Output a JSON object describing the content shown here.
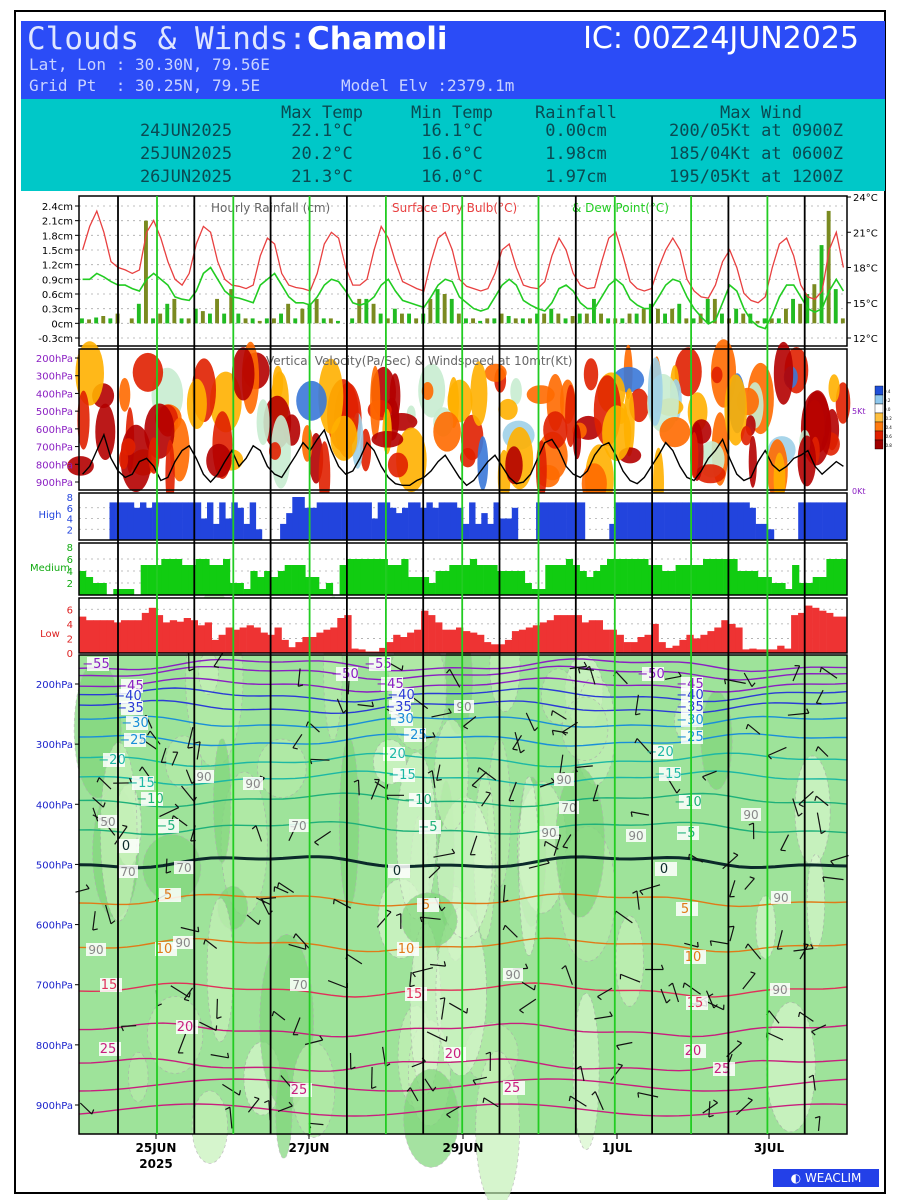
{
  "header": {
    "title_prefix": "Clouds & Winds:",
    "location": "Chamoli",
    "ic": "IC: 00Z24JUN2025",
    "latlon": "Lat, Lon : 30.30N, 79.56E",
    "gridpt": "Grid Pt  : 30.25N, 79.5E",
    "model_elev": "Model Elv :2379.1m"
  },
  "summary": {
    "columns": [
      "Max Temp",
      "Min Temp",
      "Rainfall",
      "Max Wind"
    ],
    "rows": [
      {
        "date": "24JUN2025",
        "max": "22.1°C",
        "min": "16.1°C",
        "rain": "0.00cm",
        "wind": "200/05Kt at 0900Z"
      },
      {
        "date": "25JUN2025",
        "max": "20.2°C",
        "min": "16.6°C",
        "rain": "1.98cm",
        "wind": "185/04Kt at 0600Z"
      },
      {
        "date": "26JUN2025",
        "max": "21.3°C",
        "min": "16.0°C",
        "rain": "1.97cm",
        "wind": "195/05Kt at 1200Z"
      }
    ]
  },
  "chart_data": [
    {
      "type": "bar+line",
      "title": "Hourly Rainfall (cm)    Surface Dry Bulb(°C)  & Dew Point(°C)",
      "title_parts": [
        "Hourly Rainfall (cm)",
        "Surface Dry Bulb(°C)",
        "& Dew Point(°C)"
      ],
      "y_left_ticks": [
        "2.4cm",
        "2.1cm",
        "1.8cm",
        "1.5cm",
        "1.2cm",
        "0.9cm",
        "0.6cm",
        "0.3cm",
        "0cm",
        "-0.3cm"
      ],
      "y_left_range": [
        -0.3,
        2.4
      ],
      "y_right_ticks": [
        "24°C",
        "21°C",
        "18°C",
        "15°C",
        "12°C"
      ],
      "y_right_range": [
        12,
        24
      ],
      "rain": [
        0.1,
        0.08,
        0.12,
        0.15,
        0.1,
        0.2,
        0.0,
        0.1,
        0.4,
        2.1,
        0.1,
        0.2,
        0.4,
        0.5,
        0.1,
        0.1,
        0.3,
        0.25,
        0.2,
        0.5,
        0.2,
        0.7,
        0.2,
        0.1,
        0.1,
        0.05,
        0.1,
        0.1,
        0.2,
        0.4,
        0.1,
        0.3,
        0.4,
        0.5,
        0.1,
        0.1,
        0.05,
        0.0,
        0.1,
        0.5,
        0.5,
        0.4,
        0.2,
        0.1,
        0.3,
        0.2,
        0.2,
        0.1,
        0.2,
        0.5,
        0.7,
        0.6,
        0.5,
        0.2,
        0.1,
        0.1,
        0.05,
        0.1,
        0.1,
        0.2,
        0.15,
        0.1,
        0.1,
        0.1,
        0.2,
        0.2,
        0.3,
        0.2,
        0.1,
        0.15,
        0.2,
        0.2,
        0.5,
        0.2,
        0.1,
        0.1,
        0.1,
        0.2,
        0.2,
        0.3,
        0.4,
        0.3,
        0.2,
        0.3,
        0.4,
        0.1,
        0.1,
        0.2,
        0.5,
        0.5,
        0.2,
        0.1,
        0.3,
        0.2,
        0.2,
        0.05,
        0.1,
        0.1,
        0.1,
        0.3,
        0.5,
        0.4,
        0.6,
        0.8,
        1.6,
        2.3,
        0.7,
        0.1
      ],
      "dry_bulb": [
        19.5,
        21.5,
        22.8,
        21.0,
        18.5,
        18.0,
        17.8,
        17.5,
        17.8,
        21.0,
        22.0,
        20.5,
        18.5,
        17.0,
        16.5,
        17.5,
        20.0,
        21.5,
        21.0,
        18.5,
        17.0,
        16.5,
        16.4,
        16.2,
        16.5,
        19.0,
        20.5,
        20.0,
        17.5,
        16.5,
        16.3,
        16.2,
        16.0,
        17.5,
        20.0,
        21.0,
        20.5,
        18.0,
        16.5,
        16.5,
        17.0,
        19.5,
        21.5,
        20.5,
        18.5,
        16.8,
        16.5,
        16.2,
        16.0,
        18.5,
        20.5,
        21.0,
        19.5,
        17.0,
        16.4,
        16.2,
        16.0,
        16.2,
        17.5,
        19.5,
        20.0,
        18.0,
        16.5,
        16.3,
        16.2,
        16.8,
        19.0,
        20.5,
        19.5,
        17.5,
        16.5,
        16.2,
        16.3,
        18.5,
        20.5,
        21.0,
        19.0,
        16.8,
        16.2,
        16.0,
        16.2,
        18.0,
        19.5,
        20.5,
        19.5,
        17.0,
        16.0,
        15.5,
        15.4,
        16.5,
        18.5,
        19.5,
        18.0,
        15.8,
        15.2,
        15.0,
        15.5,
        18.0,
        20.0,
        20.5,
        19.0,
        16.5,
        15.5,
        15.3,
        16.0,
        19.5,
        21.0,
        18.0
      ],
      "dew_point": [
        17.0,
        17.0,
        17.5,
        17.2,
        16.8,
        16.5,
        16.5,
        16.2,
        16.0,
        17.0,
        17.5,
        17.0,
        16.5,
        15.5,
        15.3,
        15.2,
        16.0,
        17.5,
        18.0,
        17.0,
        16.0,
        15.5,
        15.4,
        15.2,
        15.0,
        16.5,
        17.0,
        17.5,
        16.5,
        15.5,
        15.0,
        15.0,
        14.8,
        15.5,
        16.5,
        17.0,
        16.8,
        16.0,
        15.0,
        14.8,
        15.0,
        15.5,
        16.5,
        17.0,
        16.0,
        15.2,
        15.0,
        14.8,
        14.6,
        15.5,
        16.5,
        17.0,
        16.8,
        15.5,
        15.0,
        14.5,
        14.3,
        14.5,
        15.5,
        16.5,
        17.0,
        16.5,
        15.2,
        14.8,
        14.5,
        14.3,
        15.0,
        16.2,
        16.5,
        16.0,
        15.0,
        14.5,
        14.5,
        15.5,
        16.5,
        17.0,
        16.5,
        15.3,
        14.8,
        14.5,
        14.5,
        15.5,
        16.5,
        17.0,
        16.8,
        15.5,
        14.5,
        13.8,
        13.2,
        13.5,
        15.0,
        16.5,
        16.0,
        14.5,
        13.5,
        13.0,
        12.8,
        14.0,
        15.5,
        16.5,
        16.5,
        15.5,
        14.5,
        14.2,
        14.5,
        16.0,
        17.0,
        16.0
      ]
    },
    {
      "type": "heatmap+line",
      "title": "Vertical Velocity(Pa/Sec) & Windspeed at 10mtr(Kt)",
      "y_ticks": [
        "200hPa",
        "300hPa",
        "400hPa",
        "500hPa",
        "600hPa",
        "700hPa",
        "800hPa",
        "900hPa"
      ],
      "y_right_ticks": [
        "5Kt",
        "0Kt"
      ],
      "colorbar_ticks": [
        "0.4",
        "0.2",
        "0.0",
        "-0.2",
        "-0.4",
        "-0.6",
        "-0.8"
      ],
      "wind_10m_kt": [
        1.0,
        1.5,
        2.5,
        3.5,
        2.0,
        1.2,
        0.8,
        1.0,
        1.8,
        2.0,
        1.5,
        0.6,
        0.8,
        1.8,
        2.5,
        2.8,
        2.0,
        1.0,
        0.5,
        1.0,
        1.8,
        2.5,
        1.5,
        2.0,
        2.8,
        2.5,
        1.5,
        1.0,
        0.8,
        1.5,
        2.2,
        3.0,
        2.5,
        3.2,
        3.8,
        2.5,
        1.5,
        1.0,
        1.2,
        2.0,
        3.0,
        2.5,
        1.5,
        0.8,
        0.4,
        0.3,
        0.3,
        0.6,
        0.8,
        1.2,
        1.8,
        2.2,
        1.5,
        0.8,
        0.3,
        0.6,
        1.2,
        1.8,
        2.2,
        1.5,
        0.8,
        0.4,
        0.5,
        1.0,
        2.0,
        3.0,
        3.2,
        2.5,
        1.5,
        1.0,
        0.8,
        1.2,
        2.2,
        2.8,
        3.0,
        2.2,
        1.2,
        0.6,
        0.4,
        0.8,
        1.5,
        2.2,
        3.0,
        2.5,
        1.5,
        0.8,
        0.6,
        1.2,
        2.0,
        2.5,
        3.2,
        2.0,
        1.0,
        0.6,
        0.8,
        1.8,
        2.5,
        1.6,
        1.2,
        1.5,
        2.0,
        2.2,
        2.5,
        1.5,
        1.0,
        1.4,
        1.8,
        1.5
      ]
    },
    {
      "type": "bar",
      "name": "High",
      "y_ticks": [
        "8",
        "6",
        "4",
        "2"
      ],
      "ylim": [
        0,
        8
      ],
      "values": [
        0,
        0,
        0,
        0,
        0,
        7,
        7,
        7,
        7,
        6,
        7,
        6,
        7,
        7,
        7,
        7,
        7,
        7,
        7,
        7,
        4,
        7,
        3,
        7,
        4,
        7,
        6,
        3,
        7,
        2,
        0,
        0,
        0,
        3,
        5,
        8,
        8,
        6,
        6,
        7,
        7,
        7,
        7,
        7,
        7,
        7,
        7,
        7,
        4,
        7,
        7,
        6,
        5,
        6,
        7,
        7,
        6,
        7,
        6,
        7,
        7,
        7,
        6,
        3,
        7,
        3,
        5,
        3,
        7,
        4,
        4,
        6,
        0,
        0,
        0,
        7,
        7,
        7,
        7,
        7,
        7,
        7,
        7,
        0,
        0,
        0,
        0,
        3,
        7,
        7,
        7,
        7,
        7,
        7,
        7,
        7,
        7,
        7,
        7,
        7,
        7,
        7,
        7,
        7,
        7,
        7,
        7,
        7,
        7,
        7,
        6,
        3,
        3,
        2,
        0,
        0,
        0,
        0,
        7,
        7,
        7,
        7,
        7,
        7,
        7,
        7
      ]
    },
    {
      "type": "bar",
      "name": "Medium",
      "y_ticks": [
        "8",
        "6",
        "4",
        "2"
      ],
      "ylim": [
        0,
        8
      ],
      "values": [
        4,
        3,
        2,
        2,
        0,
        1,
        1,
        1,
        0,
        5,
        5,
        5,
        6,
        6,
        6,
        5,
        5,
        6,
        6,
        5,
        5,
        6,
        2,
        2,
        1,
        4,
        3,
        4,
        3,
        4,
        5,
        5,
        5,
        3,
        3,
        1,
        2,
        0,
        5,
        6,
        6,
        6,
        6,
        6,
        6,
        5,
        5,
        6,
        3,
        3,
        3,
        2,
        4,
        4,
        5,
        5,
        5,
        6,
        5,
        5,
        5,
        4,
        4,
        4,
        4,
        2,
        1,
        1,
        5,
        5,
        5,
        6,
        5,
        4,
        3,
        4,
        5,
        6,
        6,
        6,
        6,
        6,
        6,
        5,
        5,
        4,
        4,
        5,
        5,
        5,
        5,
        6,
        6,
        6,
        6,
        6,
        4,
        4,
        4,
        3,
        3,
        2,
        2,
        1,
        5,
        2,
        2,
        3,
        3,
        6,
        6,
        6
      ]
    },
    {
      "type": "bar",
      "name": "Low",
      "y_ticks": [
        "6",
        "4",
        "2",
        "0"
      ],
      "ylim": [
        0,
        7
      ],
      "values": [
        5,
        4.5,
        4.5,
        4.5,
        4.5,
        4.2,
        4.5,
        4.5,
        4.5,
        5.5,
        6.2,
        5.2,
        4.2,
        4.5,
        4.3,
        4.8,
        4.5,
        3.8,
        4.2,
        1.8,
        2.5,
        3.5,
        3.2,
        3.5,
        3.8,
        3.5,
        2.8,
        2.5,
        3.5,
        1.8,
        0.8,
        1.5,
        2.2,
        2.2,
        2.8,
        3.2,
        3.5,
        4.8,
        5.2,
        0.6,
        0.5,
        0.2,
        0.2,
        0.7,
        1.5,
        2.5,
        2.2,
        2.8,
        3.2,
        5.8,
        5.2,
        4.2,
        3.2,
        3.2,
        3.5,
        3.0,
        2.8,
        2.5,
        1.5,
        1.2,
        1.2,
        1.8,
        3.0,
        3.2,
        3.5,
        3.8,
        4.2,
        4.5,
        5.2,
        5.2,
        5.2,
        5.2,
        4.2,
        4.5,
        4.5,
        3.2,
        3.2,
        2.5,
        1.5,
        1.5,
        2.2,
        2.5,
        4.0,
        1.5,
        0.7,
        1.0,
        1.8,
        2.5,
        2.0,
        2.5,
        3.0,
        3.5,
        4.5,
        4.0,
        3.5,
        0.5,
        0.6,
        0.5,
        0.5,
        0.5,
        1.0,
        0.6,
        5.2,
        5.5,
        6.5,
        6.2,
        5.8,
        5.5,
        5.0,
        5.0
      ]
    },
    {
      "type": "contour",
      "title": "Temperature contours and wind barbs",
      "y_ticks": [
        "200hPa",
        "300hPa",
        "400hPa",
        "500hPa",
        "600hPa",
        "700hPa",
        "800hPa",
        "900hPa"
      ],
      "temperature_levels": [
        -55,
        -50,
        -45,
        -40,
        -35,
        -30,
        -25,
        -20,
        -15,
        -10,
        -5,
        0,
        5,
        10,
        15,
        20,
        25
      ],
      "humidity_labels": [
        "90",
        "70",
        "50"
      ]
    }
  ],
  "x_axis": {
    "ticks": [
      "25JUN",
      "27JUN",
      "29JUN",
      "1JUL",
      "3JUL"
    ],
    "year": "2025"
  },
  "logo": "WEACLIM"
}
